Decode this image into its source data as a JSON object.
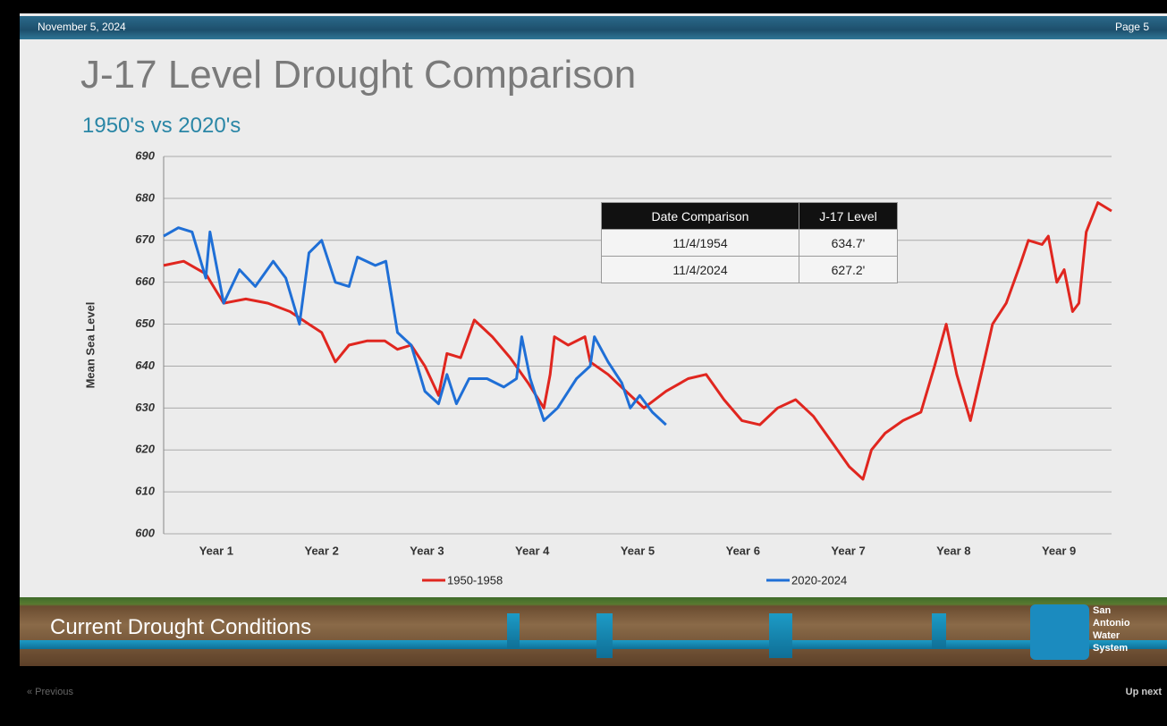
{
  "slide": {
    "date": "November 5, 2024",
    "page": "Page 5",
    "footer": "Current Drought Conditions",
    "logo": [
      "San",
      "Antonio",
      "Water",
      "System"
    ],
    "nav_prev": "« Previous",
    "nav_next": "Up next"
  },
  "table": {
    "columns": [
      "Date Comparison",
      "J-17 Level"
    ],
    "rows": [
      [
        "11/4/1954",
        "634.7'"
      ],
      [
        "11/4/2024",
        "627.2'"
      ]
    ]
  },
  "chart_data": {
    "type": "line",
    "title": "J-17 Level Drought Comparison",
    "subtitle": "1950's vs 2020's",
    "y_label": "Mean Sea Level",
    "grid": true,
    "xlim": [
      0,
      9
    ],
    "xticks": [
      {
        "value": 0.5,
        "label": "Year 1"
      },
      {
        "value": 1.5,
        "label": "Year 2"
      },
      {
        "value": 2.5,
        "label": "Year 3"
      },
      {
        "value": 3.5,
        "label": "Year 4"
      },
      {
        "value": 4.5,
        "label": "Year 5"
      },
      {
        "value": 5.5,
        "label": "Year 6"
      },
      {
        "value": 6.5,
        "label": "Year 7"
      },
      {
        "value": 7.5,
        "label": "Year 8"
      },
      {
        "value": 8.5,
        "label": "Year 9"
      }
    ],
    "ylim": [
      600,
      690
    ],
    "yticks": [
      600,
      610,
      620,
      630,
      640,
      650,
      660,
      670,
      680,
      690
    ],
    "series": [
      {
        "name": "1950-1958",
        "color": "#e0261f",
        "x": [
          0,
          0.19,
          0.4,
          0.57,
          0.78,
          0.99,
          1.2,
          1.38,
          1.5,
          1.63,
          1.76,
          1.93,
          2.1,
          2.22,
          2.35,
          2.48,
          2.61,
          2.69,
          2.82,
          2.95,
          3.12,
          3.29,
          3.46,
          3.61,
          3.67,
          3.71,
          3.84,
          4.0,
          4.05,
          4.22,
          4.39,
          4.56,
          4.77,
          4.98,
          5.15,
          5.32,
          5.49,
          5.66,
          5.83,
          6.0,
          6.17,
          6.34,
          6.51,
          6.64,
          6.72,
          6.85,
          7.02,
          7.19,
          7.32,
          7.43,
          7.53,
          7.66,
          7.78,
          7.87,
          8.0,
          8.13,
          8.21,
          8.34,
          8.4,
          8.48,
          8.55,
          8.63,
          8.69,
          8.76,
          8.87,
          9.0
        ],
        "values": [
          664,
          665,
          662,
          655,
          656,
          655,
          653,
          650,
          648,
          641,
          645,
          646,
          646,
          644,
          645,
          640,
          633,
          643,
          642,
          651,
          647,
          642,
          636,
          630,
          638,
          647,
          645,
          647,
          641,
          638,
          634,
          630,
          634,
          637,
          638,
          632,
          627,
          626,
          630,
          632,
          628,
          622,
          616,
          613,
          620,
          624,
          627,
          629,
          640,
          650,
          638,
          627,
          640,
          650,
          655,
          664,
          670,
          669,
          671,
          660,
          663,
          653,
          655,
          672,
          679,
          677
        ]
      },
      {
        "name": "2020-2024",
        "color": "#1f6fd6",
        "x": [
          0,
          0.14,
          0.27,
          0.4,
          0.44,
          0.57,
          0.72,
          0.87,
          1.04,
          1.16,
          1.29,
          1.38,
          1.5,
          1.63,
          1.76,
          1.84,
          2.01,
          2.11,
          2.22,
          2.35,
          2.48,
          2.61,
          2.69,
          2.78,
          2.9,
          3.07,
          3.23,
          3.35,
          3.4,
          3.48,
          3.61,
          3.74,
          3.92,
          4.05,
          4.09,
          4.22,
          4.35,
          4.43,
          4.52,
          4.64,
          4.77
        ],
        "values": [
          671,
          673,
          672,
          661,
          672,
          655,
          663,
          659,
          665,
          661,
          650,
          667,
          670,
          660,
          659,
          666,
          664,
          665,
          648,
          645,
          634,
          631,
          638,
          631,
          637,
          637,
          635,
          637,
          647,
          637,
          627,
          630,
          637,
          640,
          647,
          641,
          636,
          630,
          633,
          629,
          626
        ]
      }
    ],
    "legend": "bottom"
  }
}
